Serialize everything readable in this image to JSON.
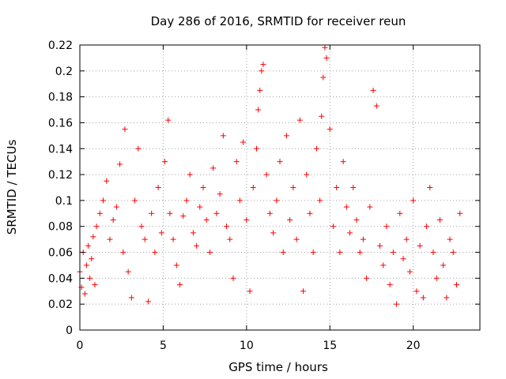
{
  "chart_data": {
    "type": "scatter",
    "title": "Day 286 of 2016, SRMTID for receiver reun",
    "xlabel": "GPS time / hours",
    "ylabel": "SRMTID / TECUs",
    "xlim": [
      0,
      24
    ],
    "ylim": [
      0,
      0.22
    ],
    "xticks": [
      0,
      5,
      10,
      15,
      20
    ],
    "yticks": [
      0,
      0.02,
      0.04,
      0.06,
      0.08,
      0.1,
      0.12,
      0.14,
      0.16,
      0.18,
      0.2,
      0.22
    ],
    "xtick_labels": [
      "0",
      "5",
      "10",
      "15",
      "20"
    ],
    "ytick_labels": [
      "0",
      "0.02",
      "0.04",
      "0.06",
      "0.08",
      "0.1",
      "0.12",
      "0.14",
      "0.16",
      "0.18",
      "0.2",
      "0.22"
    ],
    "grid": true,
    "marker": "+",
    "color": "#ff0000",
    "series": [
      {
        "name": "SRMTID",
        "x": [
          0.0,
          0.1,
          0.2,
          0.3,
          0.4,
          0.5,
          0.6,
          0.7,
          0.8,
          0.9,
          1.0,
          1.2,
          1.4,
          1.6,
          1.8,
          2.0,
          2.2,
          2.4,
          2.6,
          2.7,
          2.9,
          3.1,
          3.3,
          3.5,
          3.7,
          3.9,
          4.1,
          4.3,
          4.5,
          4.7,
          4.9,
          5.1,
          5.3,
          5.4,
          5.6,
          5.8,
          6.0,
          6.2,
          6.4,
          6.6,
          6.8,
          7.0,
          7.2,
          7.4,
          7.6,
          7.8,
          8.0,
          8.2,
          8.4,
          8.6,
          8.8,
          9.0,
          9.2,
          9.4,
          9.6,
          9.8,
          10.0,
          10.2,
          10.4,
          10.6,
          10.7,
          10.8,
          10.9,
          11.0,
          11.2,
          11.4,
          11.6,
          11.8,
          12.0,
          12.2,
          12.4,
          12.6,
          12.8,
          13.0,
          13.2,
          13.4,
          13.6,
          13.8,
          14.0,
          14.2,
          14.4,
          14.5,
          14.6,
          14.7,
          14.8,
          15.0,
          15.2,
          15.4,
          15.6,
          15.8,
          16.0,
          16.2,
          16.4,
          16.6,
          16.8,
          17.0,
          17.2,
          17.4,
          17.6,
          17.8,
          18.0,
          18.2,
          18.4,
          18.6,
          18.8,
          19.0,
          19.2,
          19.4,
          19.6,
          19.8,
          20.0,
          20.2,
          20.4,
          20.6,
          20.8,
          21.0,
          21.2,
          21.4,
          21.6,
          21.8,
          22.0,
          22.2,
          22.4,
          22.6,
          22.8
        ],
        "y": [
          0.045,
          0.033,
          0.06,
          0.028,
          0.05,
          0.065,
          0.04,
          0.055,
          0.072,
          0.035,
          0.08,
          0.09,
          0.1,
          0.115,
          0.07,
          0.085,
          0.095,
          0.128,
          0.06,
          0.155,
          0.045,
          0.025,
          0.1,
          0.14,
          0.08,
          0.07,
          0.022,
          0.09,
          0.06,
          0.11,
          0.075,
          0.13,
          0.162,
          0.09,
          0.07,
          0.05,
          0.035,
          0.088,
          0.1,
          0.12,
          0.075,
          0.065,
          0.095,
          0.11,
          0.085,
          0.06,
          0.125,
          0.09,
          0.105,
          0.15,
          0.08,
          0.07,
          0.04,
          0.13,
          0.1,
          0.145,
          0.085,
          0.03,
          0.11,
          0.14,
          0.17,
          0.185,
          0.2,
          0.205,
          0.12,
          0.09,
          0.075,
          0.1,
          0.13,
          0.06,
          0.15,
          0.085,
          0.11,
          0.07,
          0.162,
          0.03,
          0.12,
          0.09,
          0.06,
          0.14,
          0.1,
          0.165,
          0.195,
          0.218,
          0.21,
          0.155,
          0.08,
          0.11,
          0.06,
          0.13,
          0.095,
          0.075,
          0.11,
          0.085,
          0.06,
          0.07,
          0.04,
          0.095,
          0.185,
          0.173,
          0.065,
          0.05,
          0.08,
          0.035,
          0.06,
          0.02,
          0.09,
          0.055,
          0.07,
          0.045,
          0.1,
          0.03,
          0.065,
          0.025,
          0.08,
          0.11,
          0.06,
          0.04,
          0.085,
          0.05,
          0.025,
          0.07,
          0.06,
          0.035,
          0.09
        ]
      }
    ]
  }
}
